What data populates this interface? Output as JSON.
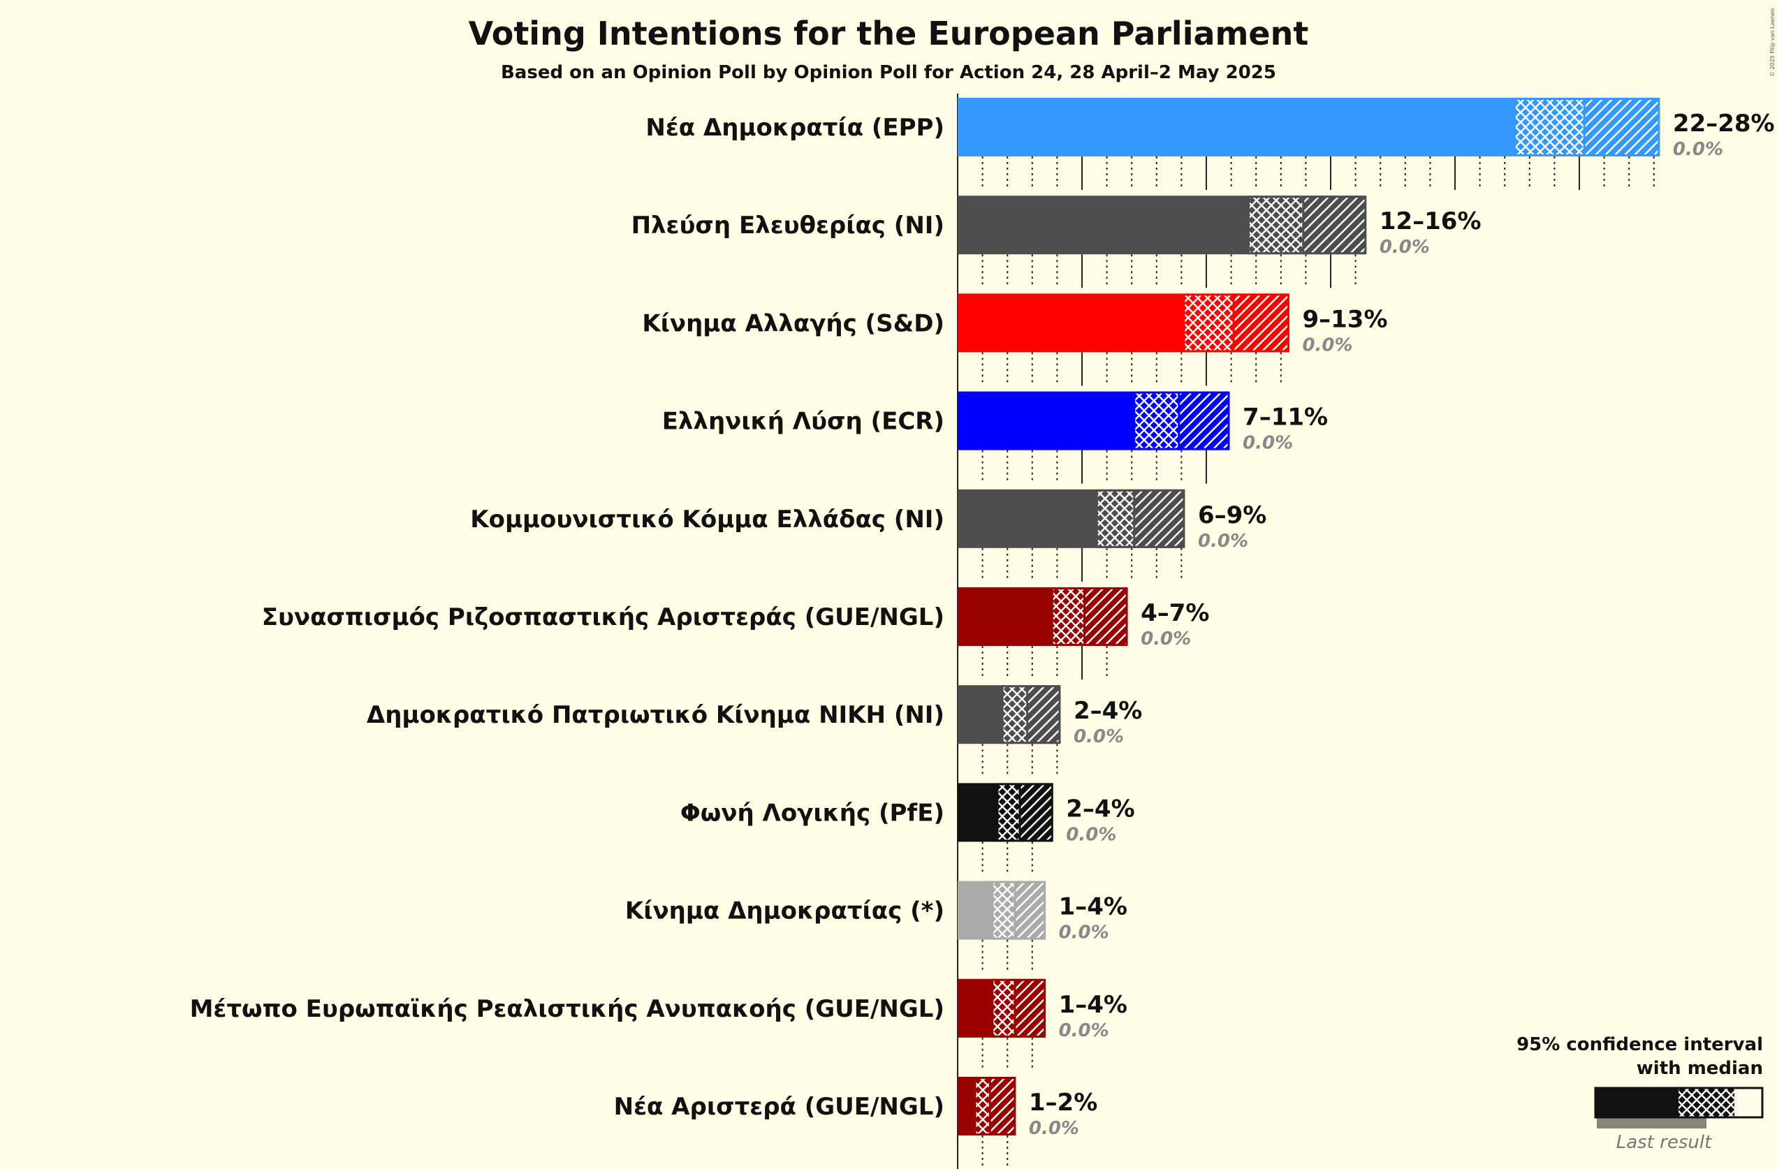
{
  "chart_data": {
    "type": "bar",
    "title": "Voting Intentions for the European Parliament",
    "subtitle": "Based on an Opinion Poll by Opinion Poll for Action 24, 28 April–2 May 2025",
    "copyright": "© 2025 Filip van Laenen",
    "unit": "%",
    "series": [
      {
        "party": "Νέα Δημοκρατία (EPP)",
        "color": "#3399ff",
        "ci_low": 22.4,
        "median": 25.2,
        "ci_high": 28.2,
        "range_label": "22–28%",
        "last_result": "0.0%"
      },
      {
        "party": "Πλεύση Ελευθερίας (NI)",
        "color": "#4d4d4d",
        "ci_low": 11.7,
        "median": 13.9,
        "ci_high": 16.4,
        "range_label": "12–16%",
        "last_result": "0.0%"
      },
      {
        "party": "Κίνημα Αλλαγής (S&D)",
        "color": "#ff0000",
        "ci_low": 9.1,
        "median": 11.1,
        "ci_high": 13.3,
        "range_label": "9–13%",
        "last_result": "0.0%"
      },
      {
        "party": "Ελληνική Λύση (ECR)",
        "color": "#0000ff",
        "ci_low": 7.1,
        "median": 8.9,
        "ci_high": 10.9,
        "range_label": "7–11%",
        "last_result": "0.0%"
      },
      {
        "party": "Κομμουνιστικό Κόμμα Ελλάδας (NI)",
        "color": "#4d4d4d",
        "ci_low": 5.6,
        "median": 7.1,
        "ci_high": 9.1,
        "range_label": "6–9%",
        "last_result": "0.0%"
      },
      {
        "party": "Συνασπισμός Ριζοσπαστικής Αριστεράς (GUE/NGL)",
        "color": "#990000",
        "ci_low": 3.8,
        "median": 5.1,
        "ci_high": 6.8,
        "range_label": "4–7%",
        "last_result": "0.0%"
      },
      {
        "party": "Δημοκρατικό Πατριωτικό Κίνημα ΝΙΚΗ (NI)",
        "color": "#4d4d4d",
        "ci_low": 1.8,
        "median": 2.8,
        "ci_high": 4.1,
        "range_label": "2–4%",
        "last_result": "0.0%"
      },
      {
        "party": "Φωνή Λογικής (PfE)",
        "color": "#111111",
        "ci_low": 1.6,
        "median": 2.5,
        "ci_high": 3.8,
        "range_label": "2–4%",
        "last_result": "0.0%"
      },
      {
        "party": "Κίνημα Δημοκρατίας (*)",
        "color": "#aaaaaa",
        "ci_low": 1.4,
        "median": 2.3,
        "ci_high": 3.5,
        "range_label": "1–4%",
        "last_result": "0.0%"
      },
      {
        "party": "Μέτωπο Ευρωπαϊκής Ρεαλιστικής Ανυπακοής (GUE/NGL)",
        "color": "#990000",
        "ci_low": 1.4,
        "median": 2.3,
        "ci_high": 3.5,
        "range_label": "1–4%",
        "last_result": "0.0%"
      },
      {
        "party": "Νέα Αριστερά (GUE/NGL)",
        "color": "#990000",
        "ci_low": 0.7,
        "median": 1.3,
        "ci_high": 2.3,
        "range_label": "1–2%",
        "last_result": "0.0%"
      }
    ],
    "x_max": 28,
    "major_tick_step": 5,
    "minor_tick_step": 1,
    "legend": {
      "line1": "95% confidence interval",
      "line2": "with median",
      "last_result": "Last result",
      "position": "bottom-right"
    }
  }
}
